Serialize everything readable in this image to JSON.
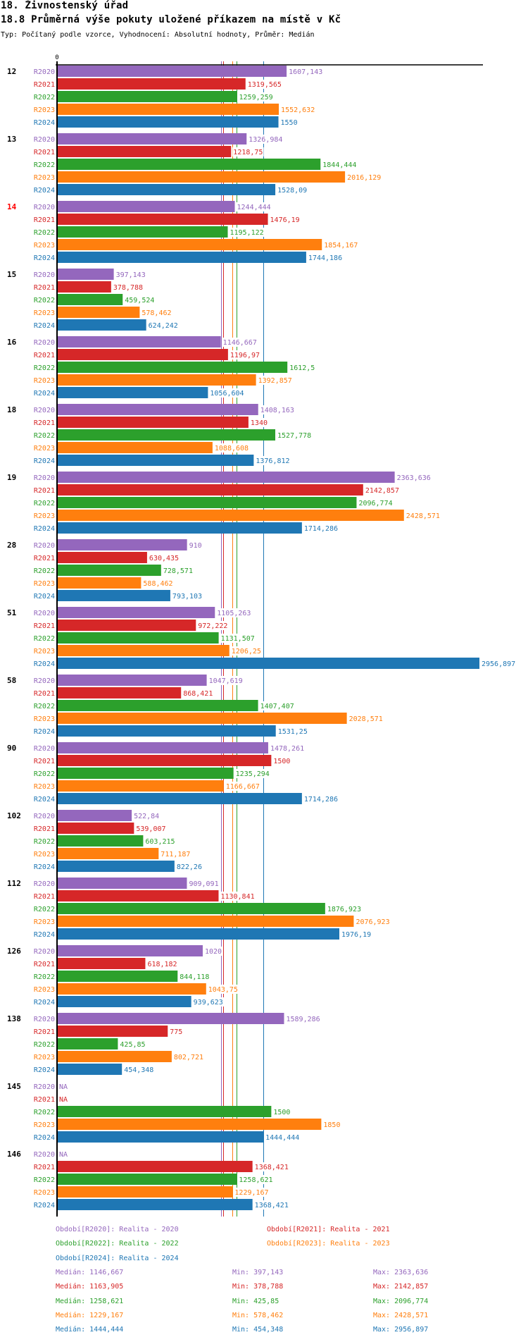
{
  "header": {
    "section": "18. Živnostenský úřad",
    "title": "18.8 Průměrná výše pokuty uložené příkazem na místě v Kč",
    "subtitle": "Typ: Počítaný podle vzorce, Vyhodnocení: Absolutní hodnoty, Průměr: Medián"
  },
  "chart_data": {
    "type": "bar",
    "orientation": "horizontal",
    "title": "18.8 Průměrná výše pokuty uložené příkazem na místě v Kč",
    "xlabel": "",
    "ylabel": "",
    "x_tick_labels": [
      "0"
    ],
    "xlim": [
      0,
      2956.897
    ],
    "grid": false,
    "categories": [
      "12",
      "13",
      "14",
      "15",
      "16",
      "18",
      "19",
      "28",
      "51",
      "58",
      "90",
      "102",
      "112",
      "126",
      "138",
      "145",
      "146"
    ],
    "highlighted_category": "14",
    "series": [
      {
        "name": "R2020",
        "color": "#9467bd",
        "values": [
          1607.143,
          1326.984,
          1244.444,
          397.143,
          1146.667,
          1408.163,
          2363.636,
          910,
          1105.263,
          1047.619,
          1478.261,
          522.84,
          909.091,
          1020,
          1589.286,
          null,
          null
        ],
        "labels": [
          "1607,143",
          "1326,984",
          "1244,444",
          "397,143",
          "1146,667",
          "1408,163",
          "2363,636",
          "910",
          "1105,263",
          "1047,619",
          "1478,261",
          "522,84",
          "909,091",
          "1020",
          "1589,286",
          "NA",
          "NA"
        ]
      },
      {
        "name": "R2021",
        "color": "#d62728",
        "values": [
          1319.565,
          1218.75,
          1476.19,
          378.788,
          1196.97,
          1340,
          2142.857,
          630.435,
          972.222,
          868.421,
          1500,
          539.007,
          1130.841,
          618.182,
          775,
          null,
          1368.421
        ],
        "labels": [
          "1319,565",
          "1218,75",
          "1476,19",
          "378,788",
          "1196,97",
          "1340",
          "2142,857",
          "630,435",
          "972,222",
          "868,421",
          "1500",
          "539,007",
          "1130,841",
          "618,182",
          "775",
          "NA",
          "1368,421"
        ]
      },
      {
        "name": "R2022",
        "color": "#2ca02c",
        "values": [
          1259.259,
          1844.444,
          1195.122,
          459.524,
          1612.5,
          1527.778,
          2096.774,
          728.571,
          1131.507,
          1407.407,
          1235.294,
          603.215,
          1876.923,
          844.118,
          425.85,
          1500,
          1258.621
        ],
        "labels": [
          "1259,259",
          "1844,444",
          "1195,122",
          "459,524",
          "1612,5",
          "1527,778",
          "2096,774",
          "728,571",
          "1131,507",
          "1407,407",
          "1235,294",
          "603,215",
          "1876,923",
          "844,118",
          "425,85",
          "1500",
          "1258,621"
        ]
      },
      {
        "name": "R2023",
        "color": "#ff7f0e",
        "values": [
          1552.632,
          2016.129,
          1854.167,
          578.462,
          1392.857,
          1088.608,
          2428.571,
          588.462,
          1206.25,
          2028.571,
          1166.667,
          711.187,
          2076.923,
          1043.75,
          802.721,
          1850,
          1229.167
        ],
        "labels": [
          "1552,632",
          "2016,129",
          "1854,167",
          "578,462",
          "1392,857",
          "1088,608",
          "2428,571",
          "588,462",
          "1206,25",
          "2028,571",
          "1166,667",
          "711,187",
          "2076,923",
          "1043,75",
          "802,721",
          "1850",
          "1229,167"
        ]
      },
      {
        "name": "R2024",
        "color": "#1f77b4",
        "values": [
          1550,
          1528.09,
          1744.186,
          624.242,
          1056.604,
          1376.812,
          1714.286,
          793.103,
          2956.897,
          1531.25,
          1714.286,
          822.26,
          1976.19,
          939.623,
          454.348,
          1444.444,
          1368.421
        ],
        "labels": [
          "1550",
          "1528,09",
          "1744,186",
          "624,242",
          "1056,604",
          "1376,812",
          "1714,286",
          "793,103",
          "2956,897",
          "1531,25",
          "1714,286",
          "822,26",
          "1976,19",
          "939,623",
          "454,348",
          "1444,444",
          "1368,421"
        ]
      }
    ],
    "reference_lines": [
      {
        "series": "R2020",
        "type": "median",
        "value": 1146.667
      },
      {
        "series": "R2021",
        "type": "median",
        "value": 1163.905
      },
      {
        "series": "R2022",
        "type": "median",
        "value": 1258.621
      },
      {
        "series": "R2023",
        "type": "median",
        "value": 1229.167
      },
      {
        "series": "R2024",
        "type": "median",
        "value": 1444.444
      }
    ],
    "legend": {
      "placement": "bottom",
      "entries": [
        "Období[R2020]: Realita - 2020",
        "Období[R2021]: Realita - 2021",
        "Období[R2022]: Realita - 2022",
        "Období[R2023]: Realita - 2023",
        "Období[R2024]: Realita - 2024"
      ]
    },
    "stats": [
      {
        "series": "R2020",
        "median": "Medián: 1146,667",
        "min": "Min: 397,143",
        "max": "Max: 2363,636"
      },
      {
        "series": "R2021",
        "median": "Medián: 1163,905",
        "min": "Min: 378,788",
        "max": "Max: 2142,857"
      },
      {
        "series": "R2022",
        "median": "Medián: 1258,621",
        "min": "Min: 425,85",
        "max": "Max: 2096,774"
      },
      {
        "series": "R2023",
        "median": "Medián: 1229,167",
        "min": "Min: 578,462",
        "max": "Max: 2428,571"
      },
      {
        "series": "R2024",
        "median": "Medián: 1444,444",
        "min": "Min: 454,348",
        "max": "Max: 2956,897"
      }
    ]
  },
  "colors": {
    "axis": "#000000",
    "category_label": "#000000",
    "highlight_label": "#ff0000"
  }
}
